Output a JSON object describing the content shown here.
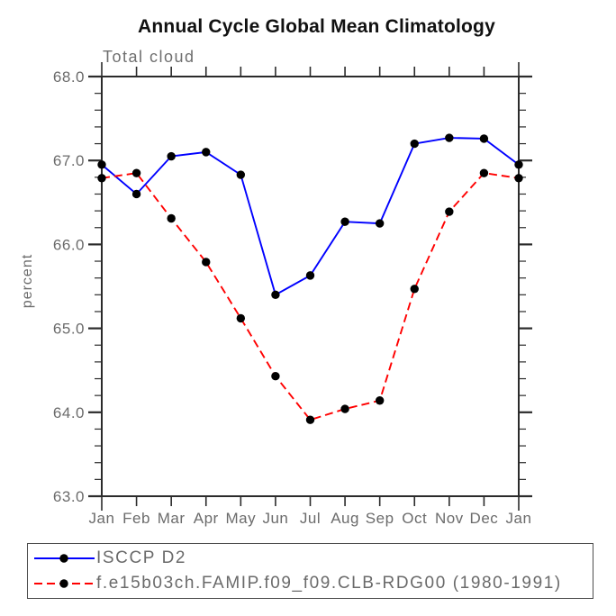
{
  "header": {
    "title": "Annual Cycle Global Mean Climatology",
    "subtitle": "Total cloud"
  },
  "chart_data": {
    "type": "line",
    "title": "Annual Cycle Global Mean Climatology",
    "subtitle": "Total cloud",
    "xlabel": "",
    "ylabel": "percent",
    "ylim": [
      63.0,
      68.0
    ],
    "ytick_labels": [
      "68.0",
      "67.0",
      "66.0",
      "65.0",
      "64.0",
      "63.0"
    ],
    "minor_tick_interval": 0.2,
    "grid": false,
    "legend_position": "bottom-left-box",
    "categories": [
      "Jan",
      "Feb",
      "Mar",
      "Apr",
      "May",
      "Jun",
      "Jul",
      "Aug",
      "Sep",
      "Oct",
      "Nov",
      "Dec",
      "Jan"
    ],
    "series": [
      {
        "name": "ISCCP D2",
        "color": "#0000ff",
        "line_style": "solid",
        "marker": "filled-black-circle",
        "values": [
          66.95,
          66.6,
          67.05,
          67.1,
          66.83,
          65.4,
          65.63,
          66.27,
          66.25,
          67.2,
          67.27,
          67.26,
          66.95
        ]
      },
      {
        "name": "f.e15b03ch.FAMIP.f09_f09.CLB-RDG00 (1980-1991)",
        "color": "#ff0000",
        "line_style": "dashed",
        "marker": "filled-black-circle",
        "values": [
          66.79,
          66.85,
          66.31,
          65.79,
          65.12,
          64.43,
          63.91,
          64.04,
          64.14,
          65.47,
          66.39,
          66.85,
          66.79
        ]
      }
    ]
  },
  "colors": {
    "axis": "#2b2b2b",
    "tick_label": "#6b6b6b",
    "marker": "#000000",
    "legend_border": "#4d4d4d"
  }
}
